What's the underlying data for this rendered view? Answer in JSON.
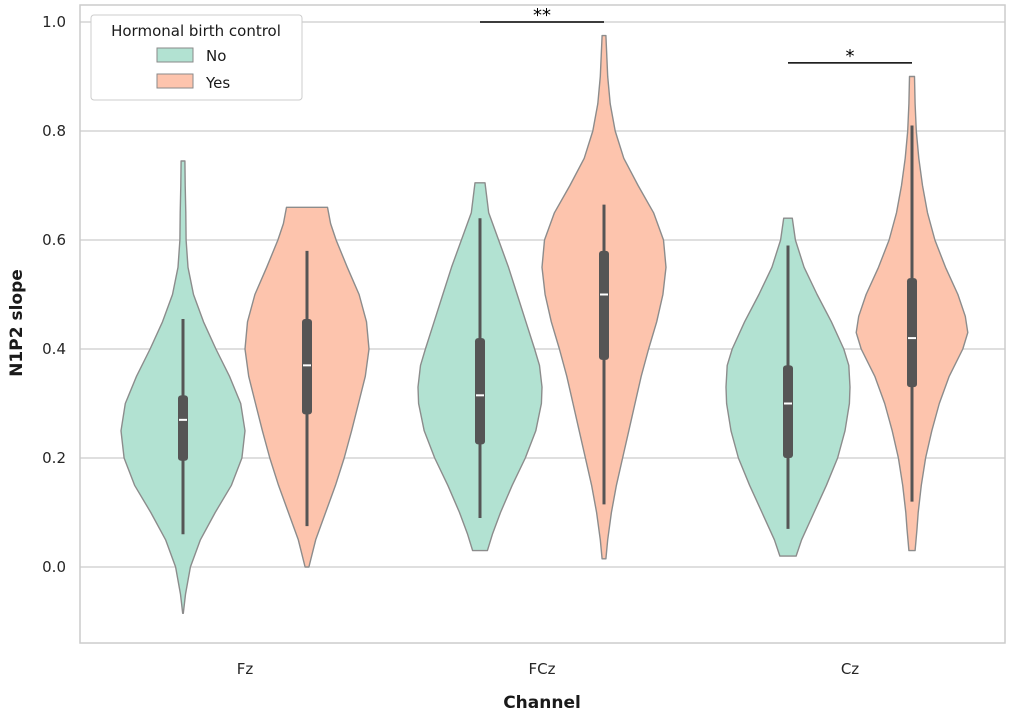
{
  "chart_data": {
    "type": "violin",
    "xlabel": "Channel",
    "ylabel": "N1P2 slope",
    "categories": [
      "Fz",
      "FCz",
      "Cz"
    ],
    "ylim": [
      -0.14,
      1.04
    ],
    "yticks": [
      "0.0",
      "0.2",
      "0.4",
      "0.6",
      "0.8",
      "1.0"
    ],
    "ytick_values": [
      0.0,
      0.2,
      0.4,
      0.6,
      0.8,
      1.0
    ],
    "grid": true,
    "legend": {
      "title": "Hormonal birth control",
      "placement": "top-left",
      "entries": [
        {
          "label": "No",
          "color": "#b2e2d2"
        },
        {
          "label": "Yes",
          "color": "#fdc4ad"
        }
      ]
    },
    "series": [
      {
        "name": "No",
        "color": "#b2e2d2",
        "violins": [
          {
            "category": "Fz",
            "range": [
              -0.085,
              0.745
            ],
            "profile": [
              [
                -0.085,
                0.005
              ],
              [
                -0.05,
                0.04
              ],
              [
                0.0,
                0.12
              ],
              [
                0.05,
                0.28
              ],
              [
                0.1,
                0.52
              ],
              [
                0.15,
                0.78
              ],
              [
                0.2,
                0.95
              ],
              [
                0.25,
                1.0
              ],
              [
                0.3,
                0.93
              ],
              [
                0.35,
                0.75
              ],
              [
                0.4,
                0.53
              ],
              [
                0.45,
                0.33
              ],
              [
                0.5,
                0.17
              ],
              [
                0.55,
                0.08
              ],
              [
                0.6,
                0.05
              ],
              [
                0.65,
                0.045
              ],
              [
                0.7,
                0.035
              ],
              [
                0.745,
                0.03
              ]
            ],
            "whisker": [
              0.06,
              0.455
            ],
            "q1": 0.195,
            "median": 0.27,
            "q3": 0.315
          },
          {
            "category": "FCz",
            "range": [
              0.03,
              0.705
            ],
            "profile": [
              [
                0.03,
                0.12
              ],
              [
                0.06,
                0.2
              ],
              [
                0.1,
                0.33
              ],
              [
                0.15,
                0.52
              ],
              [
                0.2,
                0.73
              ],
              [
                0.25,
                0.9
              ],
              [
                0.3,
                0.99
              ],
              [
                0.33,
                1.0
              ],
              [
                0.37,
                0.96
              ],
              [
                0.4,
                0.88
              ],
              [
                0.45,
                0.74
              ],
              [
                0.5,
                0.6
              ],
              [
                0.55,
                0.46
              ],
              [
                0.6,
                0.3
              ],
              [
                0.65,
                0.14
              ],
              [
                0.705,
                0.08
              ]
            ],
            "whisker": [
              0.09,
              0.64
            ],
            "q1": 0.225,
            "median": 0.315,
            "q3": 0.42
          },
          {
            "category": "Cz",
            "range": [
              0.02,
              0.64
            ],
            "profile": [
              [
                0.02,
                0.13
              ],
              [
                0.05,
                0.22
              ],
              [
                0.1,
                0.42
              ],
              [
                0.15,
                0.62
              ],
              [
                0.2,
                0.8
              ],
              [
                0.25,
                0.92
              ],
              [
                0.3,
                0.99
              ],
              [
                0.33,
                1.0
              ],
              [
                0.37,
                0.98
              ],
              [
                0.4,
                0.9
              ],
              [
                0.45,
                0.7
              ],
              [
                0.5,
                0.47
              ],
              [
                0.55,
                0.26
              ],
              [
                0.6,
                0.12
              ],
              [
                0.64,
                0.07
              ]
            ],
            "whisker": [
              0.07,
              0.59
            ],
            "q1": 0.2,
            "median": 0.3,
            "q3": 0.37
          }
        ]
      },
      {
        "name": "Yes",
        "color": "#fdc4ad",
        "violins": [
          {
            "category": "Fz",
            "range": [
              0.0,
              0.66
            ],
            "profile": [
              [
                0.0,
                0.03
              ],
              [
                0.05,
                0.14
              ],
              [
                0.1,
                0.3
              ],
              [
                0.15,
                0.46
              ],
              [
                0.2,
                0.6
              ],
              [
                0.25,
                0.72
              ],
              [
                0.3,
                0.83
              ],
              [
                0.35,
                0.94
              ],
              [
                0.4,
                1.0
              ],
              [
                0.45,
                0.96
              ],
              [
                0.5,
                0.84
              ],
              [
                0.55,
                0.65
              ],
              [
                0.6,
                0.47
              ],
              [
                0.63,
                0.38
              ],
              [
                0.66,
                0.33
              ]
            ],
            "whisker": [
              0.075,
              0.58
            ],
            "q1": 0.28,
            "median": 0.37,
            "q3": 0.455
          },
          {
            "category": "FCz",
            "range": [
              0.015,
              0.975
            ],
            "profile": [
              [
                0.015,
                0.03
              ],
              [
                0.05,
                0.06
              ],
              [
                0.1,
                0.12
              ],
              [
                0.15,
                0.2
              ],
              [
                0.2,
                0.3
              ],
              [
                0.25,
                0.4
              ],
              [
                0.3,
                0.5
              ],
              [
                0.35,
                0.6
              ],
              [
                0.4,
                0.72
              ],
              [
                0.45,
                0.85
              ],
              [
                0.5,
                0.95
              ],
              [
                0.55,
                1.0
              ],
              [
                0.6,
                0.96
              ],
              [
                0.65,
                0.8
              ],
              [
                0.7,
                0.55
              ],
              [
                0.75,
                0.32
              ],
              [
                0.8,
                0.18
              ],
              [
                0.85,
                0.1
              ],
              [
                0.9,
                0.06
              ],
              [
                0.95,
                0.04
              ],
              [
                0.975,
                0.03
              ]
            ],
            "whisker": [
              0.115,
              0.665
            ],
            "q1": 0.38,
            "median": 0.5,
            "q3": 0.58
          },
          {
            "category": "Cz",
            "range": [
              0.03,
              0.9
            ],
            "profile": [
              [
                0.03,
                0.05
              ],
              [
                0.07,
                0.08
              ],
              [
                0.1,
                0.1
              ],
              [
                0.15,
                0.15
              ],
              [
                0.2,
                0.22
              ],
              [
                0.25,
                0.32
              ],
              [
                0.3,
                0.44
              ],
              [
                0.35,
                0.6
              ],
              [
                0.4,
                0.82
              ],
              [
                0.43,
                0.9
              ],
              [
                0.46,
                0.86
              ],
              [
                0.5,
                0.74
              ],
              [
                0.55,
                0.54
              ],
              [
                0.6,
                0.37
              ],
              [
                0.65,
                0.25
              ],
              [
                0.7,
                0.17
              ],
              [
                0.75,
                0.11
              ],
              [
                0.8,
                0.07
              ],
              [
                0.85,
                0.05
              ],
              [
                0.9,
                0.04
              ]
            ],
            "whisker": [
              0.12,
              0.81
            ],
            "q1": 0.33,
            "median": 0.42,
            "q3": 0.53
          }
        ]
      }
    ],
    "annotations": [
      {
        "category": "FCz",
        "text": "**",
        "y": 1.0
      },
      {
        "category": "Cz",
        "text": "*",
        "y": 0.925
      }
    ]
  }
}
